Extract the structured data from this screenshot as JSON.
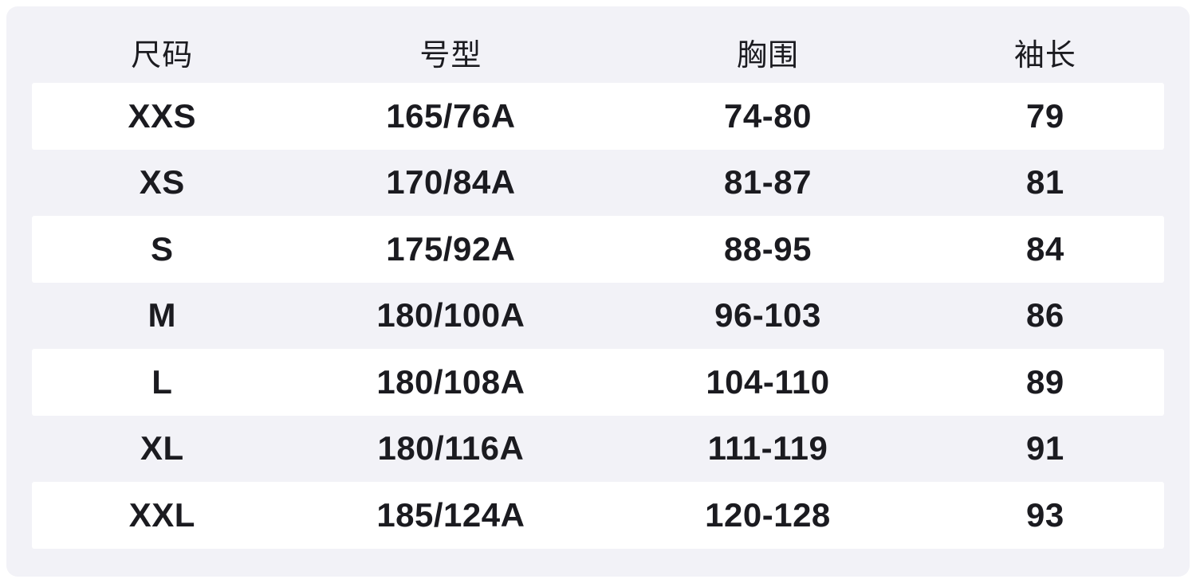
{
  "chart_data": {
    "type": "table",
    "columns": [
      "尺码",
      "号型",
      "胸围",
      "袖长"
    ],
    "rows": [
      [
        "XXS",
        "165/76A",
        "74-80",
        "79"
      ],
      [
        "XS",
        "170/84A",
        "81-87",
        "81"
      ],
      [
        "S",
        "175/92A",
        "88-95",
        "84"
      ],
      [
        "M",
        "180/100A",
        "96-103",
        "86"
      ],
      [
        "L",
        "180/108A",
        "104-110",
        "89"
      ],
      [
        "XL",
        "180/116A",
        "111-119",
        "91"
      ],
      [
        "XXL",
        "185/124A",
        "120-128",
        "93"
      ]
    ],
    "layout": {
      "striped_rows": "odd rows white, even rows lavender",
      "grid": "off",
      "text_align": "center"
    }
  },
  "colors": {
    "panel_background": "#f2f2f7",
    "stripe_background": "#ffffff",
    "outer_border": "#ffffff",
    "text": "#1b1b20"
  }
}
